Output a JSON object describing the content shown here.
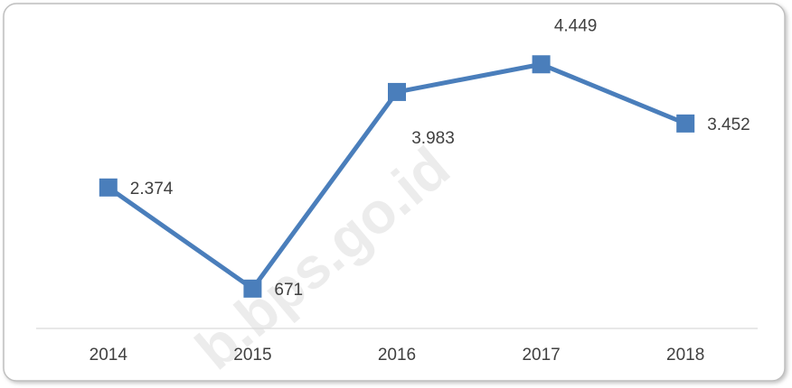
{
  "chart_data": {
    "type": "line",
    "categories": [
      "2014",
      "2015",
      "2016",
      "2017",
      "2018"
    ],
    "series": [
      {
        "name": null,
        "color": "#4a7ebb",
        "values": [
          2374,
          671,
          3983,
          4449,
          3452
        ],
        "value_labels": [
          "2.374",
          "671",
          "3.983",
          "4.449",
          "3.452"
        ]
      }
    ],
    "ylim": [
      0,
      5000
    ],
    "watermark": "b.bps.go.id"
  }
}
